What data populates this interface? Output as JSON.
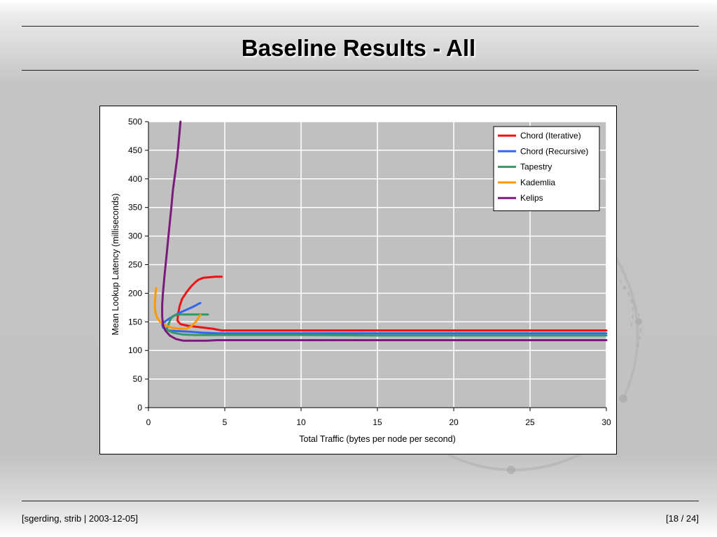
{
  "slide": {
    "title": "Baseline Results - All",
    "footer_left": "[sgerding, strib | 2003-12-05]",
    "footer_right": "[18 / 24]"
  },
  "colors": {
    "background": "#c4c4c4",
    "plot_area": "#c0c0c0",
    "gridline": "#ffffff"
  },
  "chart_data": {
    "type": "line",
    "title": "",
    "xlabel": "Total Traffic (bytes per node per second)",
    "ylabel": "Mean Lookup Latency (milliseconds)",
    "xlim": [
      0,
      30
    ],
    "ylim": [
      0,
      500
    ],
    "xticks": [
      0,
      5,
      10,
      15,
      20,
      25,
      30
    ],
    "yticks": [
      0,
      50,
      100,
      150,
      200,
      250,
      300,
      350,
      400,
      450,
      500
    ],
    "grid": true,
    "legend_position": "top-right",
    "series": [
      {
        "name": "Chord (Iterative)",
        "color": "#ee1111",
        "points": [
          [
            4.8,
            229
          ],
          [
            4.4,
            229
          ],
          [
            4.0,
            228
          ],
          [
            3.6,
            227
          ],
          [
            3.3,
            224
          ],
          [
            3.1,
            220
          ],
          [
            2.8,
            212
          ],
          [
            2.5,
            202
          ],
          [
            2.2,
            190
          ],
          [
            2.05,
            178
          ],
          [
            1.95,
            165
          ],
          [
            1.9,
            152
          ],
          [
            2.1,
            146
          ],
          [
            2.6,
            143
          ],
          [
            3.3,
            141
          ],
          [
            4.2,
            138
          ],
          [
            4.8,
            135
          ],
          [
            6,
            135
          ],
          [
            10,
            135
          ],
          [
            15,
            135
          ],
          [
            20,
            135
          ],
          [
            25,
            135
          ],
          [
            30,
            135
          ]
        ]
      },
      {
        "name": "Chord (Recursive)",
        "color": "#3366ee",
        "points": [
          [
            3.4,
            183
          ],
          [
            2.9,
            176
          ],
          [
            2.4,
            170
          ],
          [
            1.9,
            164
          ],
          [
            1.5,
            158
          ],
          [
            1.1,
            151
          ],
          [
            0.9,
            146
          ],
          [
            0.95,
            140
          ],
          [
            1.3,
            135
          ],
          [
            1.8,
            134
          ],
          [
            2.6,
            133
          ],
          [
            3.5,
            131
          ],
          [
            4.5,
            130
          ],
          [
            6,
            130
          ],
          [
            10,
            130
          ],
          [
            15,
            130
          ],
          [
            20,
            130
          ],
          [
            25,
            130
          ],
          [
            30,
            130
          ]
        ]
      },
      {
        "name": "Tapestry",
        "color": "#339966",
        "points": [
          [
            3.9,
            163
          ],
          [
            3.4,
            163
          ],
          [
            2.9,
            163
          ],
          [
            2.4,
            163
          ],
          [
            1.9,
            163
          ],
          [
            1.6,
            160
          ],
          [
            1.45,
            155
          ],
          [
            1.35,
            148
          ],
          [
            1.25,
            141
          ],
          [
            1.2,
            136
          ],
          [
            1.6,
            131
          ],
          [
            2.2,
            128
          ],
          [
            3,
            127
          ],
          [
            4,
            127
          ],
          [
            5,
            127
          ],
          [
            10,
            127
          ],
          [
            15,
            126
          ],
          [
            20,
            126
          ],
          [
            25,
            126
          ],
          [
            30,
            126
          ]
        ]
      },
      {
        "name": "Kademlia",
        "color": "#ff9900",
        "points": [
          [
            0.5,
            209
          ],
          [
            0.45,
            195
          ],
          [
            0.42,
            180
          ],
          [
            0.45,
            168
          ],
          [
            0.55,
            158
          ],
          [
            0.8,
            149
          ],
          [
            1.1,
            144
          ],
          [
            1.5,
            140
          ],
          [
            2.0,
            138
          ],
          [
            2.5,
            138
          ],
          [
            2.8,
            142
          ],
          [
            3.1,
            150
          ],
          [
            3.4,
            162
          ]
        ]
      },
      {
        "name": "Kelips",
        "color": "#7a1a7a",
        "points": [
          [
            2.1,
            500
          ],
          [
            2.0,
            470
          ],
          [
            1.9,
            440
          ],
          [
            1.75,
            410
          ],
          [
            1.6,
            380
          ],
          [
            1.5,
            350
          ],
          [
            1.35,
            310
          ],
          [
            1.2,
            270
          ],
          [
            1.05,
            230
          ],
          [
            0.95,
            200
          ],
          [
            0.9,
            180
          ],
          [
            0.9,
            160
          ],
          [
            0.95,
            145
          ],
          [
            1.1,
            135
          ],
          [
            1.4,
            126
          ],
          [
            1.8,
            120
          ],
          [
            2.3,
            117
          ],
          [
            3.0,
            117
          ],
          [
            3.8,
            117
          ],
          [
            4.5,
            118
          ],
          [
            10,
            118
          ],
          [
            15,
            118
          ],
          [
            20,
            118
          ],
          [
            25,
            118
          ],
          [
            30,
            118
          ]
        ]
      }
    ]
  }
}
